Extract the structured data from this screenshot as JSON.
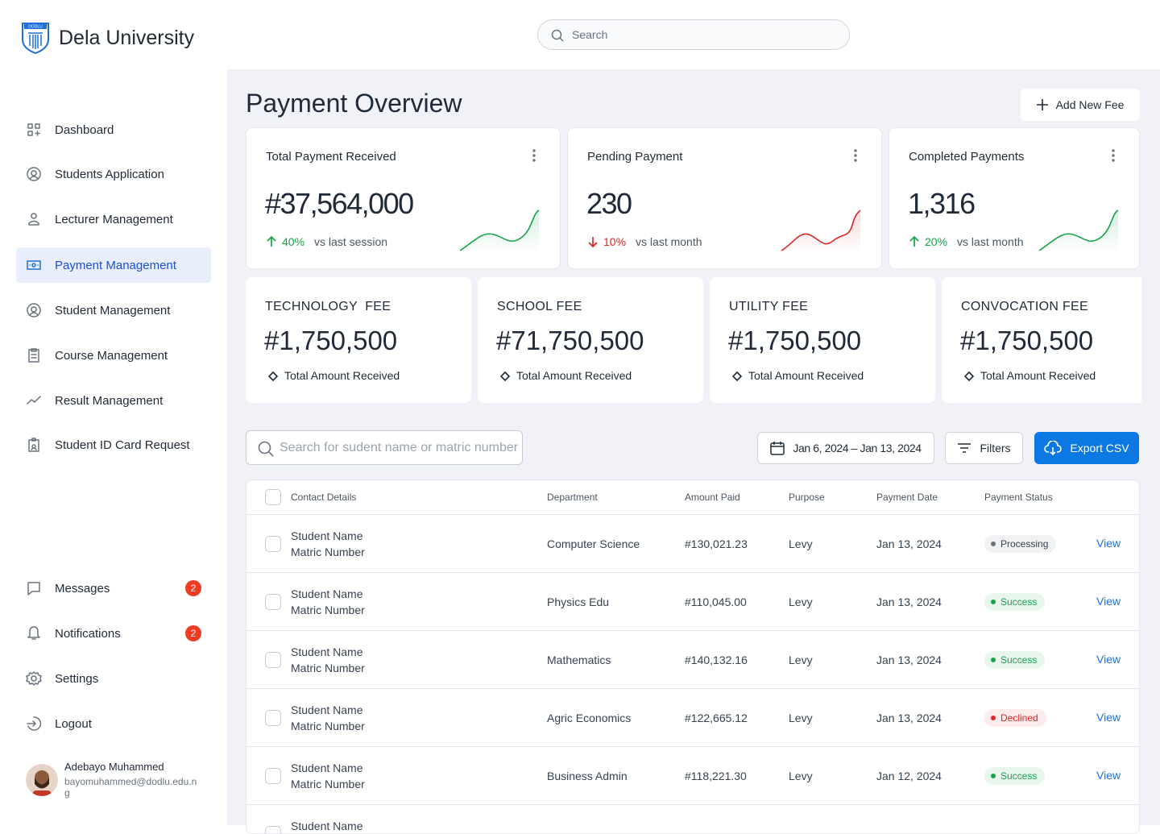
{
  "brand": {
    "logo_text": "DODLU",
    "name": "Dela University"
  },
  "top_search_placeholder": "Search",
  "nav": [
    {
      "label": "Dashboard"
    },
    {
      "label": "Students Application"
    },
    {
      "label": "Lecturer Management"
    },
    {
      "label": "Payment Management",
      "active": true
    },
    {
      "label": "Student Management"
    },
    {
      "label": "Course Management"
    },
    {
      "label": "Result Management"
    },
    {
      "label": "Student ID Card Request"
    }
  ],
  "nav_bottom": [
    {
      "label": "Messages",
      "badge": "2"
    },
    {
      "label": "Notifications",
      "badge": "2"
    },
    {
      "label": "Settings"
    },
    {
      "label": "Logout"
    }
  ],
  "user": {
    "name": "Adebayo Muhammed",
    "email": "bayomuhammed@dodlu.edu.ng"
  },
  "page_title": "Payment Overview",
  "add_button": "Add New Fee",
  "stats": [
    {
      "title": "Total Payment Received",
      "value": "#37,564,000",
      "change": "40%",
      "comparison": "vs last session",
      "direction": "up",
      "color": "#16a34a"
    },
    {
      "title": "Pending Payment",
      "value": "230",
      "change": "10%",
      "comparison": "vs last month",
      "direction": "down",
      "color": "#dc2626"
    },
    {
      "title": "Completed Payments",
      "value": "1,316",
      "change": "20%",
      "comparison": "vs last month",
      "direction": "up",
      "color": "#16a34a"
    }
  ],
  "fees": [
    {
      "title": "TECHNOLOGY  FEE",
      "amount": "#1,750,500",
      "caption": "Total Amount Received"
    },
    {
      "title": "SCHOOL FEE",
      "amount": "#71,750,500",
      "caption": "Total Amount Received"
    },
    {
      "title": "UTILITY FEE",
      "amount": "#1,750,500",
      "caption": "Total Amount Received"
    },
    {
      "title": "CONVOCATION FEE",
      "amount": "#1,750,500",
      "caption": "Total Amount Received"
    }
  ],
  "toolbar": {
    "search_placeholder": "Search for sudent name or matric number",
    "date_range": "Jan 6, 2024 – Jan 13, 2024",
    "filters": "Filters",
    "export": "Export CSV"
  },
  "table": {
    "headers": [
      "Contact Details",
      "Department",
      "Amount Paid",
      "Purpose",
      "Payment Date",
      "Payment Status"
    ],
    "rows": [
      {
        "name": "Student Name",
        "matric": "Matric Number",
        "department": "Computer Science",
        "amount": "#130,021.23",
        "purpose": "Levy",
        "date": "Jan 13, 2024",
        "status": "Processing",
        "status_color": "#6b7280",
        "action": "View"
      },
      {
        "name": "Student Name",
        "matric": "Matric Number",
        "department": "Physics Edu",
        "amount": "#110,045.00",
        "purpose": "Levy",
        "date": "Jan 13, 2024",
        "status": "Success",
        "status_color": "#16a34a",
        "action": "View"
      },
      {
        "name": "Student Name",
        "matric": "Matric Number",
        "department": "Mathematics",
        "amount": "#140,132.16",
        "purpose": "Levy",
        "date": "Jan 13, 2024",
        "status": "Success",
        "status_color": "#16a34a",
        "action": "View"
      },
      {
        "name": "Student Name",
        "matric": "Matric Number",
        "department": "Agric Economics",
        "amount": "#122,665.12",
        "purpose": "Levy",
        "date": "Jan 13, 2024",
        "status": "Declined",
        "status_color": "#dc2626",
        "action": "View"
      },
      {
        "name": "Student Name",
        "matric": "Matric Number",
        "department": "Business Admin",
        "amount": "#118,221.30",
        "purpose": "Levy",
        "date": "Jan 12, 2024",
        "status": "Success",
        "status_color": "#16a34a",
        "action": "View"
      },
      {
        "name": "Student Name"
      }
    ]
  }
}
